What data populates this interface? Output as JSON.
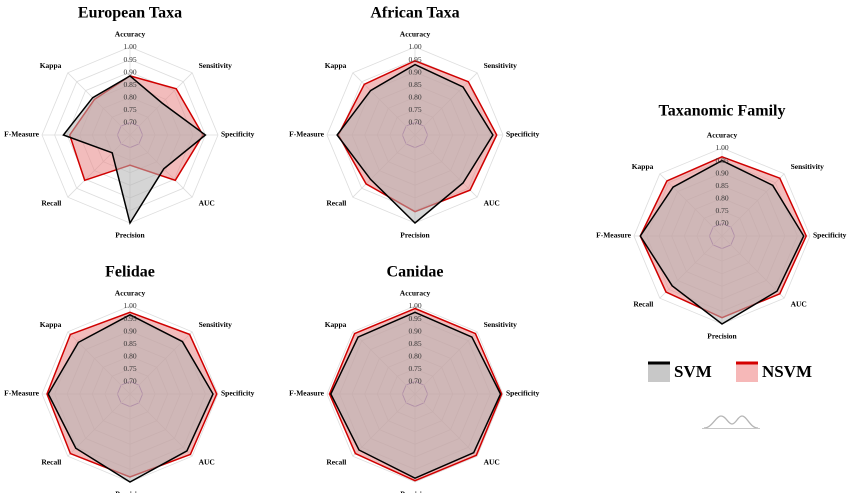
{
  "chart_data": [
    {
      "type": "radar",
      "title": "European Taxa",
      "axes": [
        "Accuracy",
        "Sensitivity",
        "Specificity",
        "AUC",
        "Precision",
        "Recall",
        "F-Measure",
        "Kappa"
      ],
      "ticks": [
        "1.00",
        "0.95",
        "0.90",
        "0.85",
        "0.80",
        "0.75",
        "0.70"
      ],
      "rlim": [
        0.65,
        1.0
      ],
      "series": [
        {
          "name": "SVM",
          "values": [
            0.885,
            0.83,
            0.95,
            0.84,
            1.0,
            0.75,
            0.915,
            0.86
          ]
        },
        {
          "name": "NSVM",
          "values": [
            0.885,
            0.91,
            0.94,
            0.905,
            0.77,
            0.905,
            0.89,
            0.85
          ]
        }
      ]
    },
    {
      "type": "radar",
      "title": "African Taxa",
      "axes": [
        "Accuracy",
        "Sensitivity",
        "Specificity",
        "AUC",
        "Precision",
        "Recall",
        "F-Measure",
        "Kappa"
      ],
      "ticks": [
        "1.00",
        "0.95",
        "0.90",
        "0.85",
        "0.80",
        "0.75",
        "0.70"
      ],
      "rlim": [
        0.65,
        1.0
      ],
      "series": [
        {
          "name": "SVM",
          "values": [
            0.93,
            0.92,
            0.96,
            0.92,
            1.0,
            0.9,
            0.96,
            0.9
          ]
        },
        {
          "name": "NSVM",
          "values": [
            0.945,
            0.95,
            0.975,
            0.96,
            0.955,
            0.925,
            0.955,
            0.935
          ]
        }
      ]
    },
    {
      "type": "radar",
      "title": "Felidae",
      "axes": [
        "Accuracy",
        "Sensitivity",
        "Specificity",
        "AUC",
        "Precision",
        "Recall",
        "F-Measure",
        "Kappa"
      ],
      "ticks": [
        "1.00",
        "0.95",
        "0.90",
        "0.85",
        "0.80",
        "0.75",
        "0.70"
      ],
      "rlim": [
        0.65,
        1.0
      ],
      "series": [
        {
          "name": "SVM",
          "values": [
            0.965,
            0.945,
            0.98,
            0.97,
            1.0,
            0.955,
            0.975,
            0.94
          ]
        },
        {
          "name": "NSVM",
          "values": [
            0.975,
            0.985,
            0.995,
            0.99,
            0.98,
            0.985,
            0.98,
            0.985
          ]
        }
      ]
    },
    {
      "type": "radar",
      "title": "Canidae",
      "axes": [
        "Accuracy",
        "Sensitivity",
        "Specificity",
        "AUC",
        "Precision",
        "Recall",
        "F-Measure",
        "Kappa"
      ],
      "ticks": [
        "1.00",
        "0.95",
        "0.90",
        "0.85",
        "0.80",
        "0.75",
        "0.70"
      ],
      "rlim": [
        0.65,
        1.0
      ],
      "series": [
        {
          "name": "SVM",
          "values": [
            0.975,
            0.97,
            0.99,
            0.98,
            0.985,
            0.965,
            0.985,
            0.97
          ]
        },
        {
          "name": "NSVM",
          "values": [
            0.99,
            0.99,
            0.995,
            0.995,
            0.995,
            0.985,
            0.99,
            0.99
          ]
        }
      ]
    },
    {
      "type": "radar",
      "title": "Taxanomic Family",
      "axes": [
        "Accuracy",
        "Sensitivity",
        "Specificity",
        "AUC",
        "Precision",
        "Recall",
        "F-Measure",
        "Kappa"
      ],
      "ticks": [
        "1.00",
        "0.95",
        "0.90",
        "0.85",
        "0.80",
        "0.75",
        "0.70"
      ],
      "rlim": [
        0.65,
        1.0
      ],
      "series": [
        {
          "name": "SVM",
          "values": [
            0.95,
            0.935,
            0.975,
            0.96,
            1.0,
            0.93,
            0.975,
            0.925
          ]
        },
        {
          "name": "NSVM",
          "values": [
            0.965,
            0.975,
            0.985,
            0.975,
            0.975,
            0.965,
            0.975,
            0.96
          ]
        }
      ]
    }
  ],
  "legend": {
    "items": [
      {
        "label": "SVM",
        "line_color": "#000000",
        "fill_color": "#c8c8c8"
      },
      {
        "label": "NSVM",
        "line_color": "#d40000",
        "fill_color": "#f6b8b8"
      }
    ]
  },
  "colors": {
    "svm_line": "#000000",
    "svm_fill": "#b3b3b3",
    "nsvm_line": "#d00000",
    "nsvm_fill": "#e88585",
    "grid": "#dddddd",
    "inner_ring": "#6a3fb5"
  }
}
